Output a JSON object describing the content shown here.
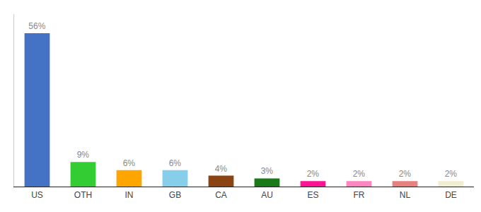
{
  "chart_data": {
    "type": "bar",
    "categories": [
      "US",
      "OTH",
      "IN",
      "GB",
      "CA",
      "AU",
      "ES",
      "FR",
      "NL",
      "DE"
    ],
    "values": [
      56,
      9,
      6,
      6,
      4,
      3,
      2,
      2,
      2,
      2
    ],
    "value_labels": [
      "56%",
      "9%",
      "6%",
      "6%",
      "4%",
      "3%",
      "2%",
      "2%",
      "2%",
      "2%"
    ],
    "colors": [
      "#4472C4",
      "#33CC33",
      "#FFA500",
      "#87CEEB",
      "#8B4513",
      "#1A7A1A",
      "#FF1493",
      "#FF85C0",
      "#E88080",
      "#F0EDD0"
    ],
    "ylim": [
      0,
      63
    ],
    "grid": false,
    "tick_labels": "x"
  }
}
